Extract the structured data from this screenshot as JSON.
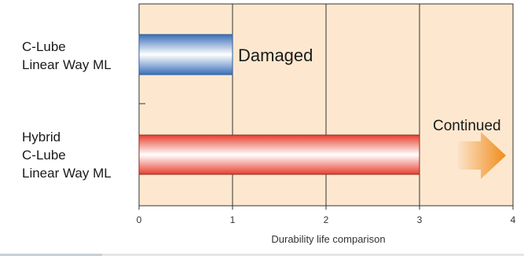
{
  "chart_data": {
    "type": "bar",
    "orientation": "horizontal",
    "categories": [
      "C-Lube\nLinear Way ML",
      "Hybrid\nC-Lube\nLinear Way ML"
    ],
    "values": [
      1,
      3
    ],
    "bar_colors": [
      "#3f78c4",
      "#ea4a3a"
    ],
    "xlabel": "Durability life comparison",
    "xlim": [
      0,
      4
    ],
    "xticks": [
      "0",
      "1",
      "2",
      "3",
      "4"
    ],
    "grid": true,
    "plot_background": "#fde8cf",
    "annotations": {
      "damaged": "Damaged",
      "continued": "Continued"
    },
    "arrow_color": "#f39c34"
  }
}
